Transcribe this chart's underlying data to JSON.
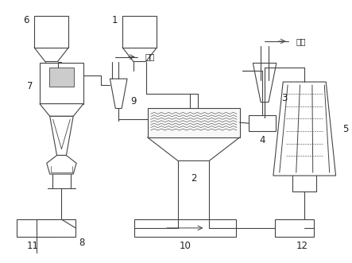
{
  "fig_width": 4.43,
  "fig_height": 3.31,
  "dpi": 100,
  "bg_color": "#ffffff",
  "line_color": "#444444",
  "lw": 0.8
}
